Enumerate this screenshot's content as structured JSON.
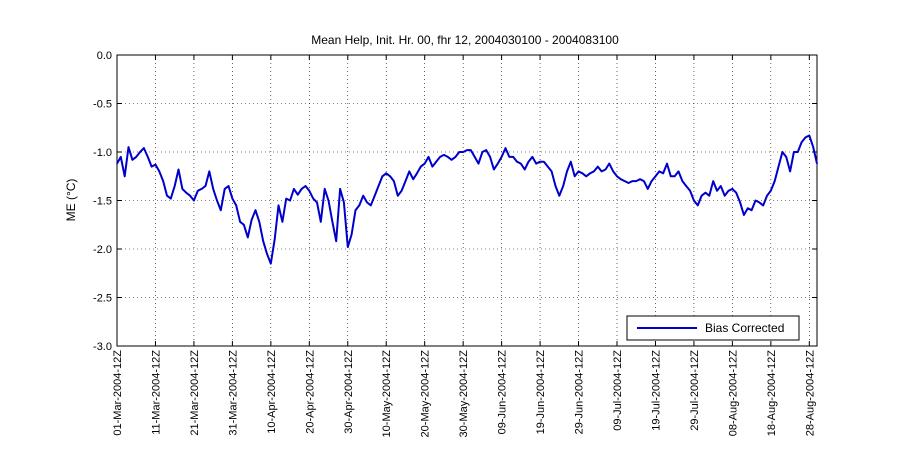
{
  "chart_data": {
    "type": "line",
    "title": "Mean Help, Init. Hr. 00, fhr 12, 2004030100 - 2004083100",
    "xlabel": "",
    "ylabel": "ME (°C)",
    "ylim": [
      -3.0,
      0.0
    ],
    "yticks": [
      "0.0",
      "-0.5",
      "-1.0",
      "-1.5",
      "-2.0",
      "-2.5",
      "-3.0"
    ],
    "xlim": [
      "2004-03-01",
      "2004-08-30"
    ],
    "xticks": [
      {
        "date": "2004-03-01",
        "label": "01-Mar-2004-12Z"
      },
      {
        "date": "2004-03-11",
        "label": "11-Mar-2004-12Z"
      },
      {
        "date": "2004-03-21",
        "label": "21-Mar-2004-12Z"
      },
      {
        "date": "2004-03-31",
        "label": "31-Mar-2004-12Z"
      },
      {
        "date": "2004-04-10",
        "label": "10-Apr-2004-12Z"
      },
      {
        "date": "2004-04-20",
        "label": "20-Apr-2004-12Z"
      },
      {
        "date": "2004-04-30",
        "label": "30-Apr-2004-12Z"
      },
      {
        "date": "2004-05-10",
        "label": "10-May-2004-12Z"
      },
      {
        "date": "2004-05-20",
        "label": "20-May-2004-12Z"
      },
      {
        "date": "2004-05-30",
        "label": "30-May-2004-12Z"
      },
      {
        "date": "2004-06-09",
        "label": "09-Jun-2004-12Z"
      },
      {
        "date": "2004-06-19",
        "label": "19-Jun-2004-12Z"
      },
      {
        "date": "2004-06-29",
        "label": "29-Jun-2004-12Z"
      },
      {
        "date": "2004-07-09",
        "label": "09-Jul-2004-12Z"
      },
      {
        "date": "2004-07-19",
        "label": "19-Jul-2004-12Z"
      },
      {
        "date": "2004-07-29",
        "label": "29-Jul-2004-12Z"
      },
      {
        "date": "2004-08-08",
        "label": "08-Aug-2004-12Z"
      },
      {
        "date": "2004-08-18",
        "label": "18-Aug-2004-12Z"
      },
      {
        "date": "2004-08-28",
        "label": "28-Aug-2004-12Z"
      }
    ],
    "grid": true,
    "legend_position": "bottom-right",
    "series": [
      {
        "name": "Bias Corrected",
        "color": "#0000cc",
        "points": [
          [
            "2004-03-01",
            -1.12
          ],
          [
            "2004-03-02",
            -1.05
          ],
          [
            "2004-03-03",
            -1.25
          ],
          [
            "2004-03-04",
            -0.95
          ],
          [
            "2004-03-05",
            -1.08
          ],
          [
            "2004-03-06",
            -1.05
          ],
          [
            "2004-03-07",
            -1.0
          ],
          [
            "2004-03-08",
            -0.96
          ],
          [
            "2004-03-09",
            -1.05
          ],
          [
            "2004-03-10",
            -1.15
          ],
          [
            "2004-03-11",
            -1.13
          ],
          [
            "2004-03-12",
            -1.2
          ],
          [
            "2004-03-13",
            -1.3
          ],
          [
            "2004-03-14",
            -1.45
          ],
          [
            "2004-03-15",
            -1.48
          ],
          [
            "2004-03-16",
            -1.35
          ],
          [
            "2004-03-17",
            -1.18
          ],
          [
            "2004-03-18",
            -1.38
          ],
          [
            "2004-03-19",
            -1.42
          ],
          [
            "2004-03-20",
            -1.45
          ],
          [
            "2004-03-21",
            -1.5
          ],
          [
            "2004-03-22",
            -1.4
          ],
          [
            "2004-03-23",
            -1.38
          ],
          [
            "2004-03-24",
            -1.35
          ],
          [
            "2004-03-25",
            -1.2
          ],
          [
            "2004-03-26",
            -1.38
          ],
          [
            "2004-03-27",
            -1.5
          ],
          [
            "2004-03-28",
            -1.6
          ],
          [
            "2004-03-29",
            -1.38
          ],
          [
            "2004-03-30",
            -1.35
          ],
          [
            "2004-03-31",
            -1.48
          ],
          [
            "2004-04-01",
            -1.55
          ],
          [
            "2004-04-02",
            -1.72
          ],
          [
            "2004-04-03",
            -1.75
          ],
          [
            "2004-04-04",
            -1.88
          ],
          [
            "2004-04-05",
            -1.7
          ],
          [
            "2004-04-06",
            -1.6
          ],
          [
            "2004-04-07",
            -1.72
          ],
          [
            "2004-04-08",
            -1.92
          ],
          [
            "2004-04-09",
            -2.05
          ],
          [
            "2004-04-10",
            -2.15
          ],
          [
            "2004-04-11",
            -1.9
          ],
          [
            "2004-04-12",
            -1.55
          ],
          [
            "2004-04-13",
            -1.72
          ],
          [
            "2004-04-14",
            -1.48
          ],
          [
            "2004-04-15",
            -1.5
          ],
          [
            "2004-04-16",
            -1.38
          ],
          [
            "2004-04-17",
            -1.44
          ],
          [
            "2004-04-18",
            -1.38
          ],
          [
            "2004-04-19",
            -1.35
          ],
          [
            "2004-04-20",
            -1.4
          ],
          [
            "2004-04-21",
            -1.48
          ],
          [
            "2004-04-22",
            -1.52
          ],
          [
            "2004-04-23",
            -1.72
          ],
          [
            "2004-04-24",
            -1.38
          ],
          [
            "2004-04-25",
            -1.5
          ],
          [
            "2004-04-26",
            -1.72
          ],
          [
            "2004-04-27",
            -1.92
          ],
          [
            "2004-04-28",
            -1.38
          ],
          [
            "2004-04-29",
            -1.52
          ],
          [
            "2004-04-30",
            -1.98
          ],
          [
            "2004-05-01",
            -1.85
          ],
          [
            "2004-05-02",
            -1.6
          ],
          [
            "2004-05-03",
            -1.55
          ],
          [
            "2004-05-04",
            -1.45
          ],
          [
            "2004-05-05",
            -1.52
          ],
          [
            "2004-05-06",
            -1.55
          ],
          [
            "2004-05-07",
            -1.45
          ],
          [
            "2004-05-08",
            -1.35
          ],
          [
            "2004-05-09",
            -1.25
          ],
          [
            "2004-05-10",
            -1.22
          ],
          [
            "2004-05-11",
            -1.25
          ],
          [
            "2004-05-12",
            -1.3
          ],
          [
            "2004-05-13",
            -1.45
          ],
          [
            "2004-05-14",
            -1.4
          ],
          [
            "2004-05-15",
            -1.3
          ],
          [
            "2004-05-16",
            -1.2
          ],
          [
            "2004-05-17",
            -1.28
          ],
          [
            "2004-05-18",
            -1.22
          ],
          [
            "2004-05-19",
            -1.15
          ],
          [
            "2004-05-20",
            -1.12
          ],
          [
            "2004-05-21",
            -1.05
          ],
          [
            "2004-05-22",
            -1.15
          ],
          [
            "2004-05-23",
            -1.1
          ],
          [
            "2004-05-24",
            -1.05
          ],
          [
            "2004-05-25",
            -1.03
          ],
          [
            "2004-05-26",
            -1.05
          ],
          [
            "2004-05-27",
            -1.08
          ],
          [
            "2004-05-28",
            -1.05
          ],
          [
            "2004-05-29",
            -1.0
          ],
          [
            "2004-05-30",
            -1.0
          ],
          [
            "2004-05-31",
            -0.98
          ],
          [
            "2004-06-01",
            -0.98
          ],
          [
            "2004-06-02",
            -1.05
          ],
          [
            "2004-06-03",
            -1.12
          ],
          [
            "2004-06-04",
            -1.0
          ],
          [
            "2004-06-05",
            -0.98
          ],
          [
            "2004-06-06",
            -1.05
          ],
          [
            "2004-06-07",
            -1.18
          ],
          [
            "2004-06-08",
            -1.12
          ],
          [
            "2004-06-09",
            -1.05
          ],
          [
            "2004-06-10",
            -0.96
          ],
          [
            "2004-06-11",
            -1.05
          ],
          [
            "2004-06-12",
            -1.05
          ],
          [
            "2004-06-13",
            -1.1
          ],
          [
            "2004-06-14",
            -1.12
          ],
          [
            "2004-06-15",
            -1.18
          ],
          [
            "2004-06-16",
            -1.1
          ],
          [
            "2004-06-17",
            -1.05
          ],
          [
            "2004-06-18",
            -1.12
          ],
          [
            "2004-06-19",
            -1.1
          ],
          [
            "2004-06-20",
            -1.1
          ],
          [
            "2004-06-21",
            -1.15
          ],
          [
            "2004-06-22",
            -1.2
          ],
          [
            "2004-06-23",
            -1.35
          ],
          [
            "2004-06-24",
            -1.45
          ],
          [
            "2004-06-25",
            -1.35
          ],
          [
            "2004-06-26",
            -1.2
          ],
          [
            "2004-06-27",
            -1.1
          ],
          [
            "2004-06-28",
            -1.25
          ],
          [
            "2004-06-29",
            -1.2
          ],
          [
            "2004-06-30",
            -1.22
          ],
          [
            "2004-07-01",
            -1.25
          ],
          [
            "2004-07-02",
            -1.22
          ],
          [
            "2004-07-03",
            -1.2
          ],
          [
            "2004-07-04",
            -1.15
          ],
          [
            "2004-07-05",
            -1.2
          ],
          [
            "2004-07-06",
            -1.18
          ],
          [
            "2004-07-07",
            -1.12
          ],
          [
            "2004-07-08",
            -1.2
          ],
          [
            "2004-07-09",
            -1.25
          ],
          [
            "2004-07-10",
            -1.28
          ],
          [
            "2004-07-11",
            -1.3
          ],
          [
            "2004-07-12",
            -1.32
          ],
          [
            "2004-07-13",
            -1.3
          ],
          [
            "2004-07-14",
            -1.3
          ],
          [
            "2004-07-15",
            -1.28
          ],
          [
            "2004-07-16",
            -1.3
          ],
          [
            "2004-07-17",
            -1.38
          ],
          [
            "2004-07-18",
            -1.3
          ],
          [
            "2004-07-19",
            -1.25
          ],
          [
            "2004-07-20",
            -1.2
          ],
          [
            "2004-07-21",
            -1.22
          ],
          [
            "2004-07-22",
            -1.12
          ],
          [
            "2004-07-23",
            -1.25
          ],
          [
            "2004-07-24",
            -1.25
          ],
          [
            "2004-07-25",
            -1.2
          ],
          [
            "2004-07-26",
            -1.3
          ],
          [
            "2004-07-27",
            -1.35
          ],
          [
            "2004-07-28",
            -1.4
          ],
          [
            "2004-07-29",
            -1.5
          ],
          [
            "2004-07-30",
            -1.55
          ],
          [
            "2004-07-31",
            -1.45
          ],
          [
            "2004-08-01",
            -1.42
          ],
          [
            "2004-08-02",
            -1.45
          ],
          [
            "2004-08-03",
            -1.3
          ],
          [
            "2004-08-04",
            -1.4
          ],
          [
            "2004-08-05",
            -1.35
          ],
          [
            "2004-08-06",
            -1.45
          ],
          [
            "2004-08-07",
            -1.4
          ],
          [
            "2004-08-08",
            -1.38
          ],
          [
            "2004-08-09",
            -1.42
          ],
          [
            "2004-08-10",
            -1.52
          ],
          [
            "2004-08-11",
            -1.65
          ],
          [
            "2004-08-12",
            -1.58
          ],
          [
            "2004-08-13",
            -1.6
          ],
          [
            "2004-08-14",
            -1.5
          ],
          [
            "2004-08-15",
            -1.52
          ],
          [
            "2004-08-16",
            -1.55
          ],
          [
            "2004-08-17",
            -1.45
          ],
          [
            "2004-08-18",
            -1.4
          ],
          [
            "2004-08-19",
            -1.3
          ],
          [
            "2004-08-20",
            -1.15
          ],
          [
            "2004-08-21",
            -1.0
          ],
          [
            "2004-08-22",
            -1.05
          ],
          [
            "2004-08-23",
            -1.2
          ],
          [
            "2004-08-24",
            -1.0
          ],
          [
            "2004-08-25",
            -1.0
          ],
          [
            "2004-08-26",
            -0.9
          ],
          [
            "2004-08-27",
            -0.85
          ],
          [
            "2004-08-28",
            -0.83
          ],
          [
            "2004-08-29",
            -0.95
          ],
          [
            "2004-08-30",
            -1.12
          ]
        ]
      }
    ]
  }
}
